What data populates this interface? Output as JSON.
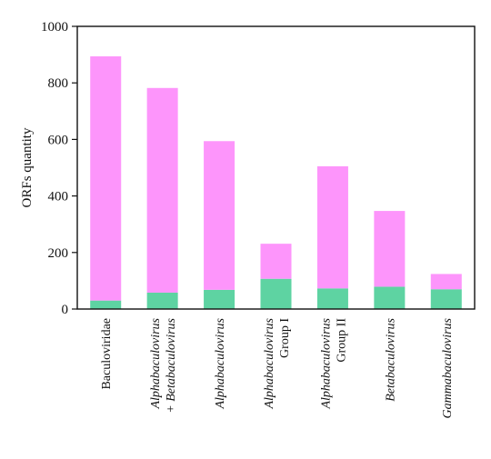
{
  "chart_data": {
    "type": "bar",
    "stacked": true,
    "ylabel": "ORFs quantity",
    "ylim": [
      0,
      1000
    ],
    "yticks": [
      "0",
      "200",
      "400",
      "600",
      "800",
      "1000"
    ],
    "categories": [
      {
        "lines": [
          "Baculoviridae"
        ],
        "italic": [
          false
        ]
      },
      {
        "lines": [
          "Alphabaculovirus",
          "+ Betabaculovirus"
        ],
        "italic": [
          true,
          true
        ]
      },
      {
        "lines": [
          "Alphabaculovirus"
        ],
        "italic": [
          true
        ]
      },
      {
        "lines": [
          "Alphabaculovirus",
          "Group I"
        ],
        "italic": [
          true,
          false
        ]
      },
      {
        "lines": [
          "Alphabaculovirus",
          "Group II"
        ],
        "italic": [
          true,
          false
        ]
      },
      {
        "lines": [
          "Betabaculovirus"
        ],
        "italic": [
          true
        ]
      },
      {
        "lines": [
          "Gammabaculovirus"
        ],
        "italic": [
          true
        ]
      }
    ],
    "series": [
      {
        "values": [
          30,
          58,
          68,
          107,
          73,
          79,
          70
        ],
        "color": "#5ed3a2"
      },
      {
        "values": [
          864,
          724,
          526,
          124,
          432,
          268,
          54
        ],
        "color": "#fd95fb"
      }
    ],
    "totals": [
      894,
      782,
      594,
      231,
      505,
      347,
      124
    ],
    "grid": false,
    "legend": "none"
  }
}
